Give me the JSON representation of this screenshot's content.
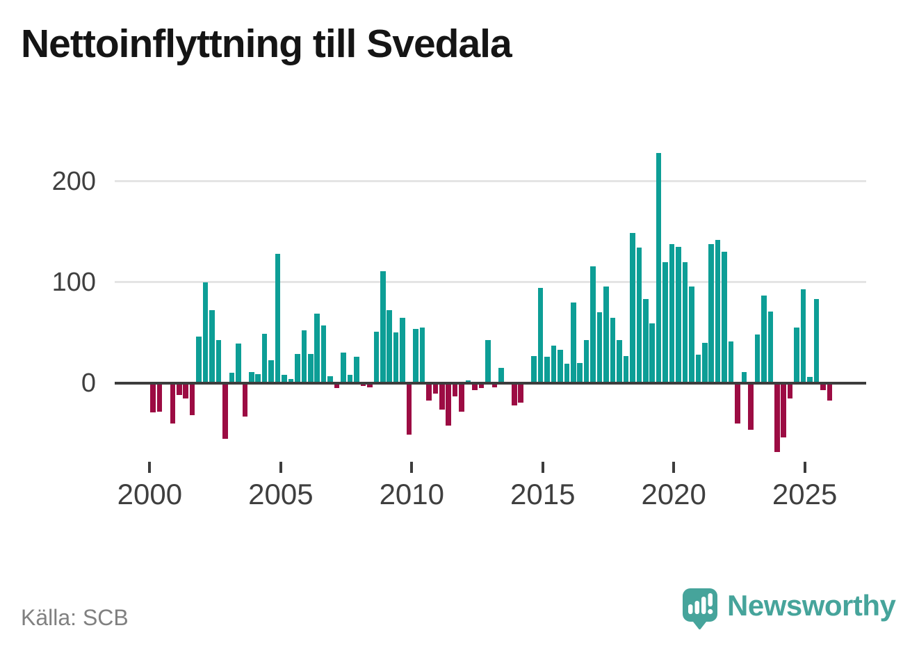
{
  "source": {
    "text": "Källa: SCB"
  },
  "logo": {
    "text": "Newsworthy",
    "color": "#46a49b"
  },
  "colors": {
    "positive": "#0d9e96",
    "negative": "#9c0c43",
    "axis": "#3d3d3d",
    "grid": "#e4e4e4",
    "labels": "#3f3f3f",
    "source_text": "#808080"
  },
  "chart_data": {
    "type": "bar",
    "title": "Nettoinflyttning till Svedala",
    "frequency": "quarterly",
    "start": "2000-Q1",
    "end": "2025-Q4",
    "grid": "horizontal",
    "legend": "none",
    "y_ticks": [
      0,
      100,
      200
    ],
    "ylim": [
      -80,
      240
    ],
    "x_tick_labels": [
      "2000",
      "2005",
      "2010",
      "2015",
      "2020",
      "2025"
    ],
    "values": [
      -29,
      -28,
      0,
      -40,
      -12,
      -15,
      -32,
      46,
      100,
      72,
      43,
      -55,
      10,
      39,
      -33,
      11,
      9,
      49,
      23,
      128,
      8,
      4,
      29,
      52,
      29,
      69,
      57,
      7,
      -5,
      30,
      8,
      26,
      -3,
      -4,
      51,
      111,
      72,
      50,
      65,
      -51,
      54,
      55,
      -17,
      -10,
      -26,
      -42,
      -13,
      -28,
      3,
      -7,
      -5,
      43,
      -4,
      15,
      0,
      -22,
      -19,
      0,
      27,
      94,
      26,
      37,
      33,
      19,
      80,
      20,
      43,
      116,
      70,
      96,
      65,
      43,
      27,
      149,
      134,
      83,
      59,
      228,
      120,
      138,
      135,
      120,
      96,
      28,
      40,
      138,
      142,
      130,
      41,
      -40,
      11,
      -46,
      48,
      87,
      71,
      -68,
      -54,
      -15,
      55,
      93,
      6,
      83,
      -7,
      -17
    ]
  }
}
